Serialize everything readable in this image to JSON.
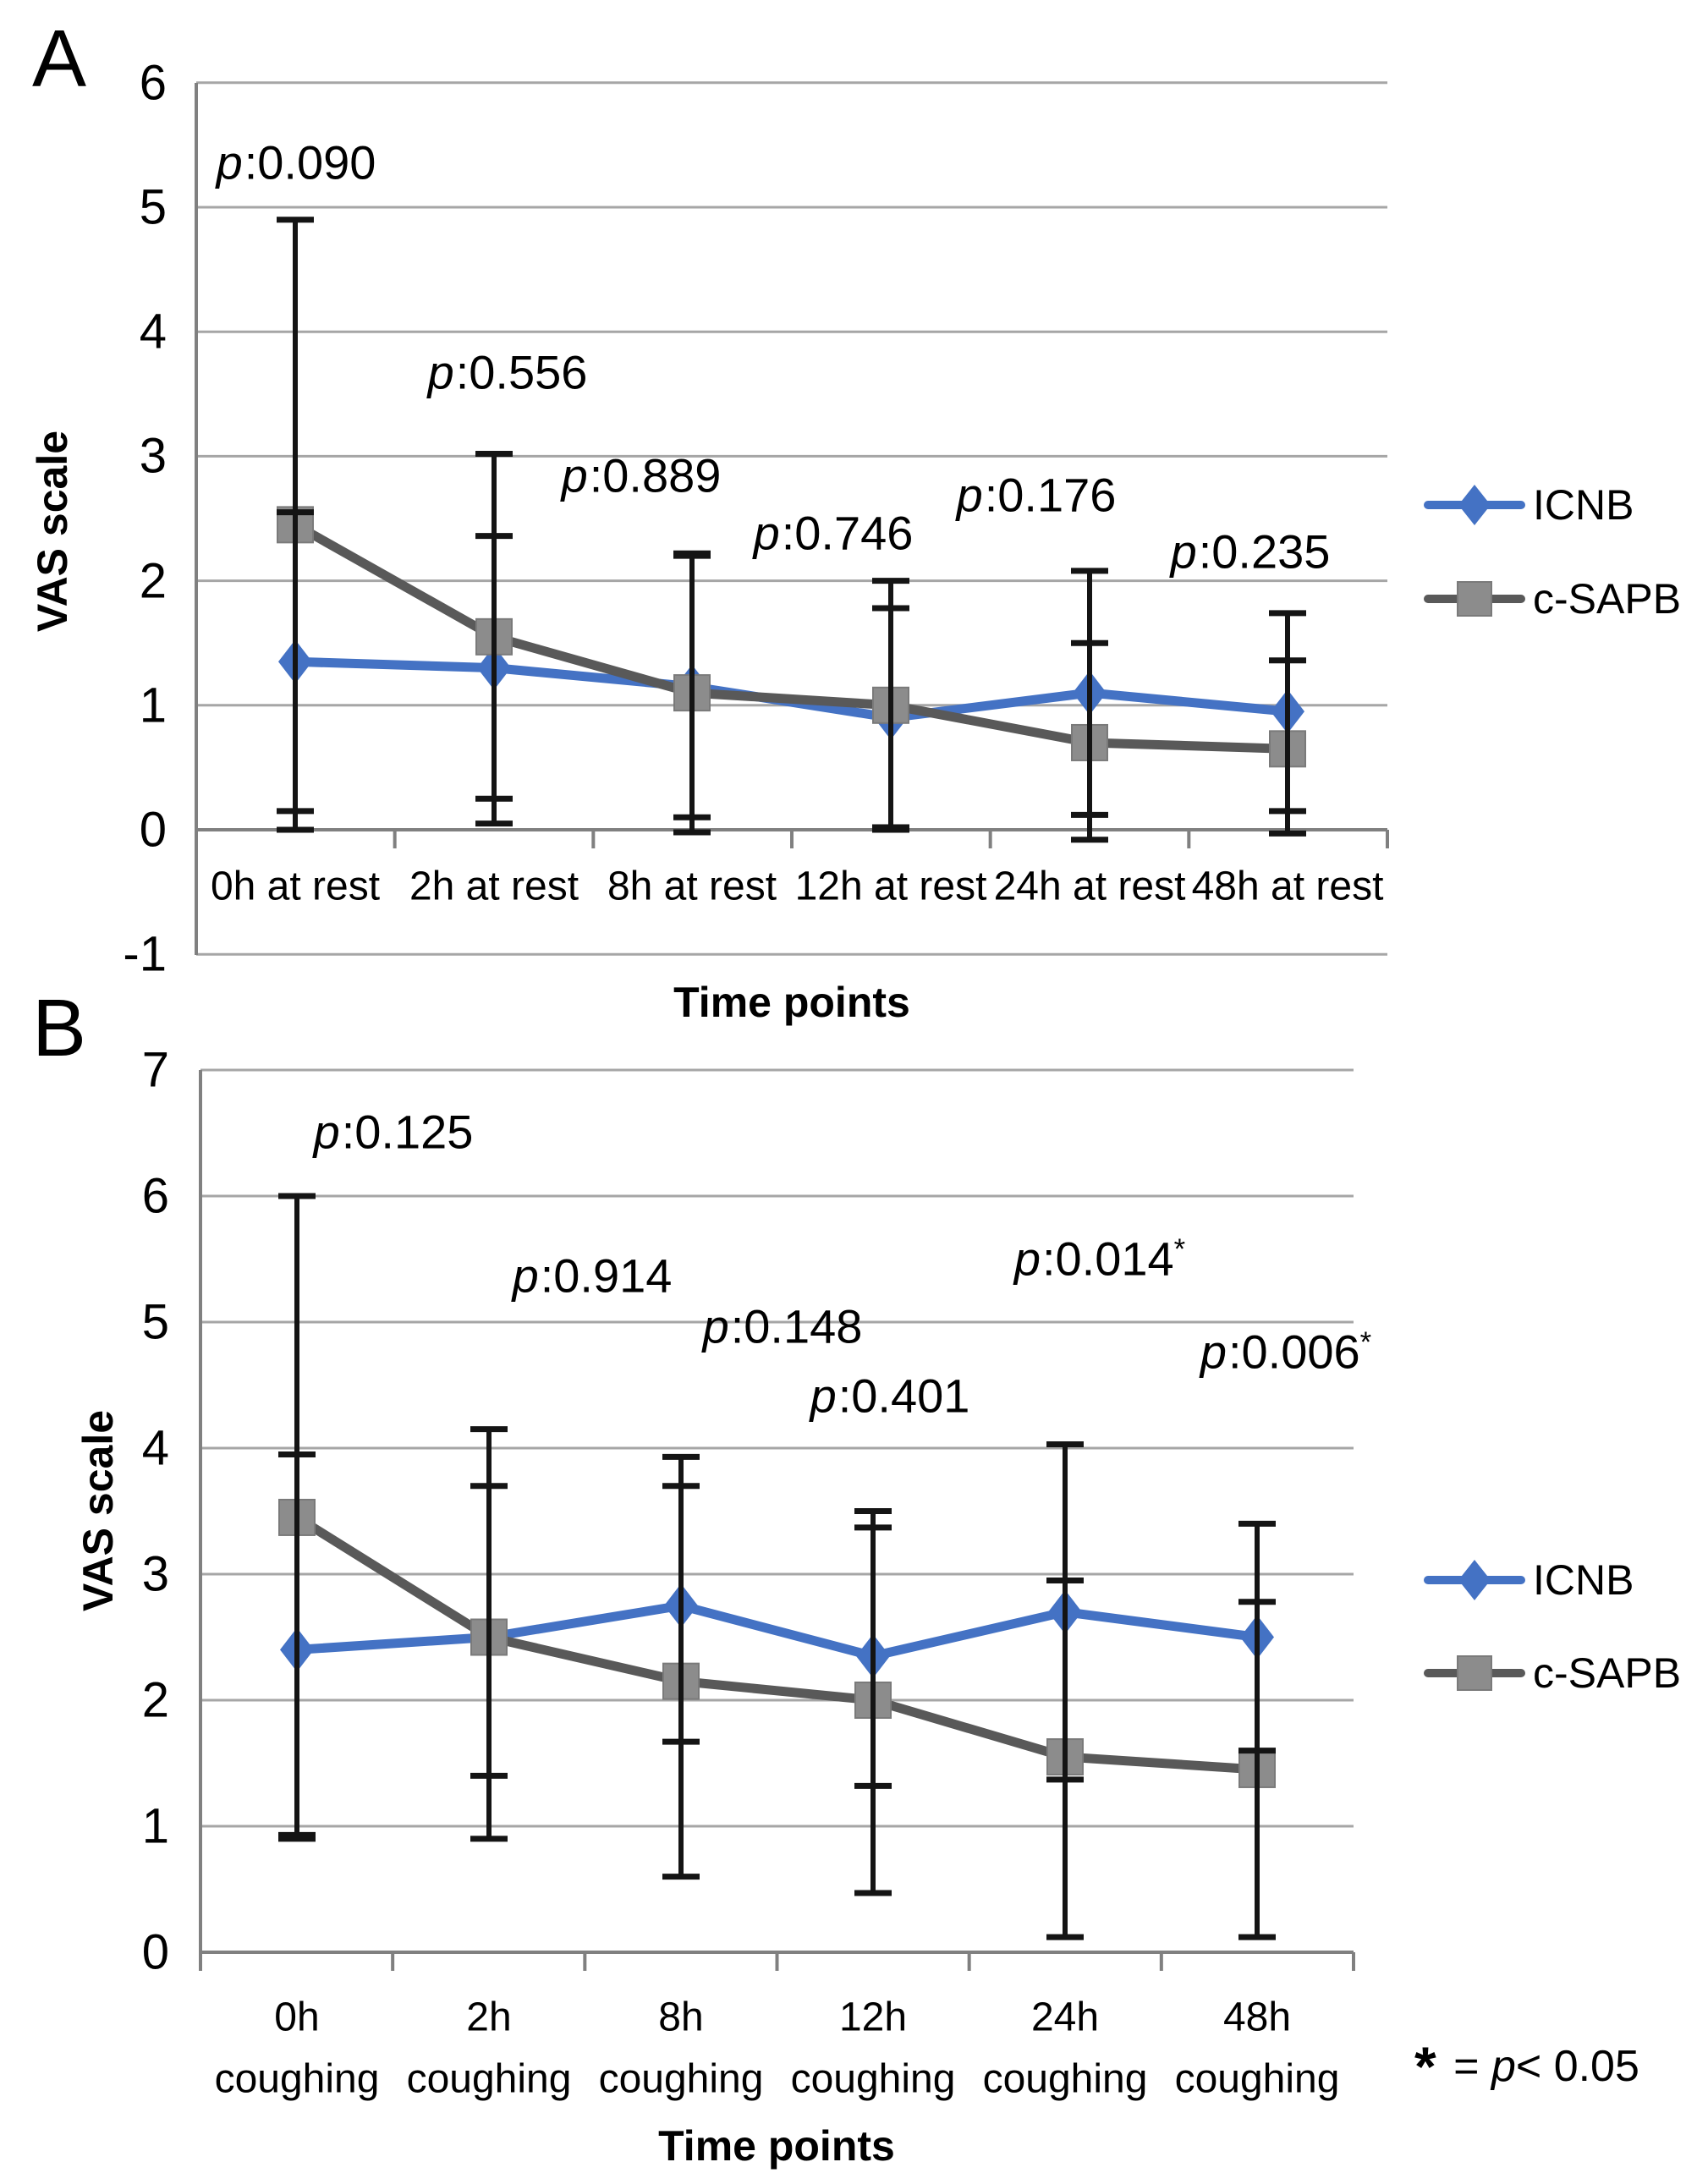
{
  "colors": {
    "icnb_blue": "#4472c4",
    "csapb_line_gray": "#595959",
    "csapb_marker_gray": "#8c8c8c",
    "gridline": "#a6a6a6",
    "axis": "#808080",
    "error_bar": "#141414",
    "text": "#000000",
    "background": "#ffffff"
  },
  "note": {
    "star": "*",
    "eq": " = ",
    "p": "p",
    "lt": "< 0.05"
  },
  "chart_data": [
    {
      "type": "line",
      "letter": "A",
      "ylabel": "VAS scale",
      "xlabel": "Time points",
      "ylim": [
        -1,
        6
      ],
      "yticks": [
        6,
        5,
        4,
        3,
        2,
        1,
        0,
        -1
      ],
      "grid": true,
      "legend_position": "right",
      "categories": [
        [
          "0h at rest"
        ],
        [
          "2h at rest"
        ],
        [
          "8h at rest"
        ],
        [
          "12h at rest"
        ],
        [
          "24h at rest"
        ],
        [
          "48h at rest"
        ]
      ],
      "series": [
        {
          "name": "ICNB",
          "marker": "diamond",
          "values": [
            1.35,
            1.3,
            1.15,
            0.9,
            1.1,
            0.95
          ],
          "err_low": [
            0.15,
            0.25,
            0.1,
            0.02,
            0.12,
            0.15
          ],
          "err_high": [
            2.55,
            2.36,
            2.2,
            1.78,
            2.08,
            1.74
          ]
        },
        {
          "name": "c-SAPB",
          "marker": "square",
          "values": [
            2.45,
            1.55,
            1.1,
            1.0,
            0.7,
            0.65
          ],
          "err_low": [
            0.0,
            0.05,
            -0.02,
            0.0,
            -0.08,
            -0.03
          ],
          "err_high": [
            4.9,
            3.02,
            2.22,
            2.0,
            1.5,
            1.36
          ]
        }
      ],
      "p_values": [
        {
          "text": "0.090",
          "sig": false
        },
        {
          "text": "0.556",
          "sig": false
        },
        {
          "text": "0.889",
          "sig": false
        },
        {
          "text": "0.746",
          "sig": false
        },
        {
          "text": "0.176",
          "sig": false
        },
        {
          "text": "0.235",
          "sig": false
        }
      ]
    },
    {
      "type": "line",
      "letter": "B",
      "ylabel": "VAS scale",
      "xlabel": "Time points",
      "ylim": [
        0,
        7
      ],
      "yticks": [
        7,
        6,
        5,
        4,
        3,
        2,
        1,
        0
      ],
      "grid": true,
      "legend_position": "right",
      "categories": [
        [
          "0h",
          "coughing"
        ],
        [
          "2h",
          "coughing"
        ],
        [
          "8h",
          "coughing"
        ],
        [
          "12h",
          "coughing"
        ],
        [
          "24h",
          "coughing"
        ],
        [
          "48h",
          "coughing"
        ]
      ],
      "series": [
        {
          "name": "ICNB",
          "marker": "diamond",
          "values": [
            2.4,
            2.5,
            2.75,
            2.35,
            2.7,
            2.5
          ],
          "err_low": [
            0.9,
            1.4,
            1.67,
            1.32,
            1.37,
            1.6
          ],
          "err_high": [
            3.95,
            3.7,
            3.93,
            3.37,
            4.03,
            3.4
          ]
        },
        {
          "name": "c-SAPB",
          "marker": "square",
          "values": [
            3.45,
            2.5,
            2.15,
            2.0,
            1.55,
            1.45
          ],
          "err_low": [
            0.93,
            0.9,
            0.6,
            0.47,
            0.12,
            0.12
          ],
          "err_high": [
            6.0,
            4.15,
            3.7,
            3.5,
            2.95,
            2.78
          ]
        }
      ],
      "p_values": [
        {
          "text": "0.125",
          "sig": false
        },
        {
          "text": "0.914",
          "sig": false
        },
        {
          "text": "0.148",
          "sig": false
        },
        {
          "text": "0.401",
          "sig": false
        },
        {
          "text": "0.014",
          "sig": true
        },
        {
          "text": "0.006",
          "sig": true
        }
      ]
    }
  ]
}
